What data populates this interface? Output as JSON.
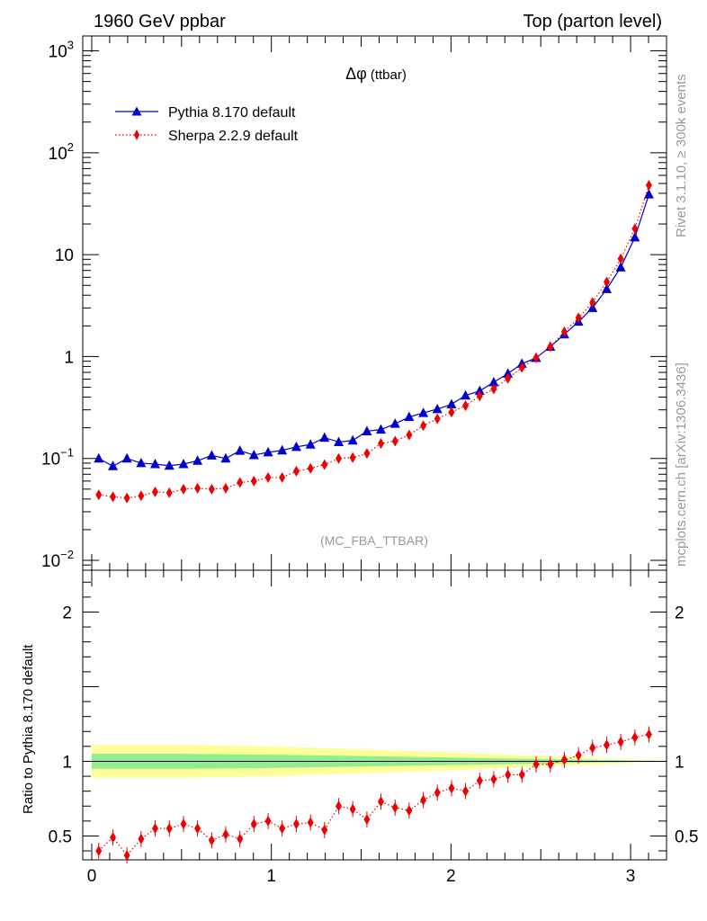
{
  "header": {
    "left": "1960 GeV ppbar",
    "right": "Top (parton level)"
  },
  "side": {
    "rivet": "Rivet 3.1.10, ≥ 300k events",
    "mcplots": "mcplots.cern.ch [arXiv:1306.3436]"
  },
  "analysis_tag": "(MC_FBA_TTBAR)",
  "chart_data": [
    {
      "type": "line",
      "title_symbol": "Δφ",
      "title_rest": "(ttbar)",
      "xlabel": "",
      "ylabel": "",
      "yscale": "log",
      "xlim": [
        -0.05,
        3.2
      ],
      "ylim": [
        0.008,
        1400
      ],
      "grid": false,
      "legend_position": "top-left",
      "y_tick_labels": [
        {
          "value": 1000,
          "base": "10",
          "exp": "3"
        },
        {
          "value": 100,
          "base": "10",
          "exp": "2"
        },
        {
          "value": 10,
          "base": "10",
          "exp": ""
        },
        {
          "value": 1,
          "base": "1",
          "exp": ""
        },
        {
          "value": 0.1,
          "base": "10",
          "exp": "−1"
        },
        {
          "value": 0.01,
          "base": "10",
          "exp": "−2"
        }
      ],
      "x": [
        0.039,
        0.118,
        0.196,
        0.275,
        0.353,
        0.432,
        0.511,
        0.589,
        0.668,
        0.746,
        0.825,
        0.903,
        0.982,
        1.06,
        1.139,
        1.218,
        1.296,
        1.375,
        1.453,
        1.532,
        1.61,
        1.689,
        1.767,
        1.846,
        1.924,
        2.003,
        2.081,
        2.16,
        2.238,
        2.317,
        2.395,
        2.474,
        2.553,
        2.631,
        2.71,
        2.788,
        2.867,
        2.945,
        3.024,
        3.102
      ],
      "series": [
        {
          "name": "Pythia 8.170 default",
          "color": "#0000cc",
          "marker": "triangle",
          "line": "solid",
          "values": [
            0.1,
            0.084,
            0.1,
            0.09,
            0.088,
            0.085,
            0.088,
            0.095,
            0.107,
            0.1,
            0.119,
            0.108,
            0.115,
            0.12,
            0.13,
            0.137,
            0.16,
            0.145,
            0.15,
            0.185,
            0.192,
            0.219,
            0.255,
            0.28,
            0.305,
            0.34,
            0.415,
            0.46,
            0.56,
            0.68,
            0.85,
            0.97,
            1.25,
            1.65,
            2.2,
            3.0,
            4.6,
            7.5,
            14.8,
            39.0
          ]
        },
        {
          "name": "Sherpa 2.2.9 default",
          "color": "#ee0000",
          "marker": "diamond",
          "line": "dotted",
          "values": [
            0.044,
            0.042,
            0.041,
            0.043,
            0.047,
            0.046,
            0.05,
            0.051,
            0.05,
            0.051,
            0.058,
            0.06,
            0.065,
            0.065,
            0.075,
            0.08,
            0.087,
            0.1,
            0.102,
            0.112,
            0.14,
            0.148,
            0.17,
            0.21,
            0.245,
            0.285,
            0.33,
            0.41,
            0.48,
            0.61,
            0.78,
            0.97,
            1.25,
            1.75,
            2.4,
            3.4,
            5.4,
            9.1,
            18.0,
            48.0
          ]
        }
      ]
    },
    {
      "type": "line",
      "ylabel": "Ratio to Pythia 8.170 default",
      "xlabel": "",
      "yscale": "linear",
      "xlim": [
        -0.05,
        3.2
      ],
      "ylim": [
        0.34,
        2.28
      ],
      "grid": false,
      "y_tick_labels": [
        "2",
        "1",
        "0.5"
      ],
      "x_tick_labels": [
        "0",
        "1",
        "2",
        "3"
      ],
      "reference_line": 1,
      "band_colors": {
        "outer": "#ffff99",
        "inner": "#90ee90"
      },
      "band_edges": [
        0.0,
        0.5,
        1.0,
        1.5,
        2.0,
        2.5,
        3.0,
        3.2
      ],
      "band_outer_halfwidth": [
        0.11,
        0.11,
        0.1,
        0.08,
        0.06,
        0.035,
        0.012,
        0.005
      ],
      "band_inner_halfwidth": [
        0.05,
        0.05,
        0.045,
        0.035,
        0.025,
        0.015,
        0.005,
        0.002
      ],
      "x": [
        0.039,
        0.118,
        0.196,
        0.275,
        0.353,
        0.432,
        0.511,
        0.589,
        0.668,
        0.746,
        0.825,
        0.903,
        0.982,
        1.06,
        1.139,
        1.218,
        1.296,
        1.375,
        1.453,
        1.532,
        1.61,
        1.689,
        1.767,
        1.846,
        1.924,
        2.003,
        2.081,
        2.16,
        2.238,
        2.317,
        2.395,
        2.474,
        2.553,
        2.631,
        2.71,
        2.788,
        2.867,
        2.945,
        3.024,
        3.102
      ],
      "series": [
        {
          "name": "Sherpa 2.2.9 default",
          "color": "#ee0000",
          "marker": "diamond",
          "line": "dotted",
          "values": [
            0.4,
            0.49,
            0.37,
            0.48,
            0.55,
            0.55,
            0.58,
            0.55,
            0.47,
            0.51,
            0.48,
            0.58,
            0.6,
            0.55,
            0.58,
            0.59,
            0.54,
            0.7,
            0.68,
            0.61,
            0.73,
            0.69,
            0.67,
            0.74,
            0.79,
            0.82,
            0.8,
            0.87,
            0.88,
            0.91,
            0.91,
            0.98,
            0.98,
            1.01,
            1.04,
            1.09,
            1.11,
            1.13,
            1.16,
            1.18
          ]
        }
      ]
    }
  ]
}
